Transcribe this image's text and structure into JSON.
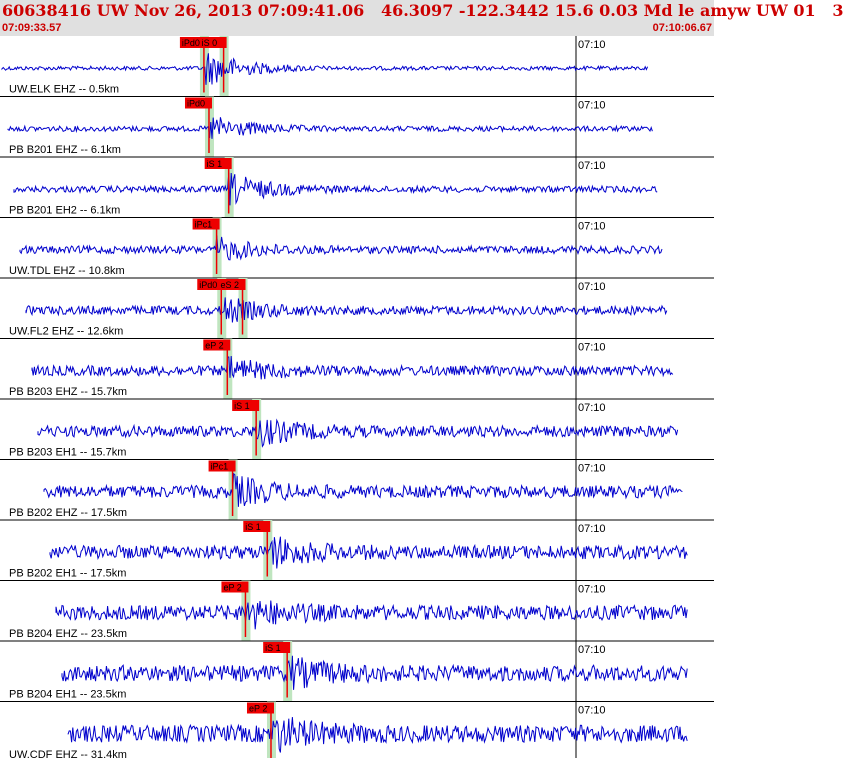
{
  "header": {
    "title": "60638416 UW Nov 26, 2013 07:09:41.06   46.3097 -122.3442 15.6 0.03 Md le amyw UW 01   3",
    "start_time": "07:09:33.57",
    "end_time": "07:10:06.67"
  },
  "colors": {
    "header_text": "#cc0000",
    "trace": "#0000cc",
    "pick_box": "#ee0000",
    "phase_band": "#bfe5bf",
    "grid": "#000000"
  },
  "time_tick_label": "07:10",
  "traces": [
    {
      "label": "UW.ELK EHZ -- 0.5km",
      "picks": [
        {
          "name": "iPd0",
          "t": 7.38
        },
        {
          "name": "iS 0",
          "t": 8.39
        }
      ],
      "amplitude": 0.85
    },
    {
      "label": "PB B201 EHZ -- 6.1km",
      "picks": [
        {
          "name": "iPd0",
          "t": 7.64
        }
      ],
      "amplitude": 0.6
    },
    {
      "label": "PB B201 EH2 -- 6.1km",
      "picks": [
        {
          "name": "iS 1",
          "t": 8.65
        }
      ],
      "amplitude": 0.7
    },
    {
      "label": "UW.TDL EHZ -- 10.8km",
      "picks": [
        {
          "name": "iPc1",
          "t": 8.03
        }
      ],
      "amplitude": 0.5
    },
    {
      "label": "UW.FL2 EHZ -- 12.6km",
      "picks": [
        {
          "name": "iPd0",
          "t": 8.27
        },
        {
          "name": "eS 2",
          "t": 9.36
        }
      ],
      "amplitude": 0.55
    },
    {
      "label": "PB B203 EHZ -- 15.7km",
      "picks": [
        {
          "name": "eP 2",
          "t": 8.58
        }
      ],
      "amplitude": 0.5
    },
    {
      "label": "PB B203 EH1 -- 15.7km",
      "picks": [
        {
          "name": "iS 1",
          "t": 10.06
        }
      ],
      "amplitude": 0.55
    },
    {
      "label": "PB B202 EHZ -- 17.5km",
      "picks": [
        {
          "name": "iPc1",
          "t": 8.85
        }
      ],
      "amplitude": 0.6
    },
    {
      "label": "PB B202 EH1 -- 17.5km",
      "picks": [
        {
          "name": "iS 1",
          "t": 10.63
        }
      ],
      "amplitude": 0.65
    },
    {
      "label": "PB B204 EHZ -- 23.5km",
      "picks": [
        {
          "name": "eP 2",
          "t": 9.51
        }
      ],
      "amplitude": 0.55
    },
    {
      "label": "PB B204 EH1 -- 23.5km",
      "picks": [
        {
          "name": "iS 1",
          "t": 11.65
        }
      ],
      "amplitude": 0.55
    },
    {
      "label": "UW.CDF EHZ -- 31.4km",
      "picks": [
        {
          "name": "eP 2",
          "t": 10.82
        }
      ],
      "amplitude": 0.7
    }
  ]
}
